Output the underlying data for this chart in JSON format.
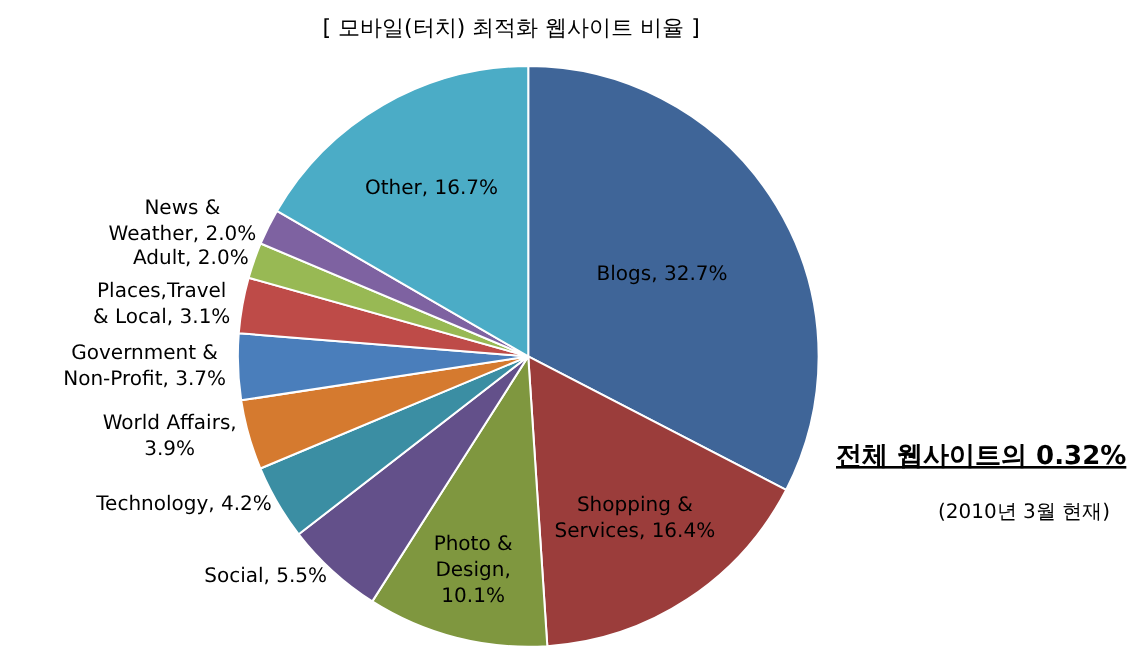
{
  "chart_data": {
    "type": "pie",
    "title": "[ 모바일(터치) 최적화 웹사이트 비율 ]",
    "categories": [
      "Blogs, 32.7%",
      "Shopping &\nServices, 16.4%",
      "Photo &\nDesign,\n10.1%",
      "Social, 5.5%",
      "Technology, 4.2%",
      "World Affairs,\n3.9%",
      "Government &\nNon-Profit, 3.7%",
      "Places,Travel\n& Local, 3.1%",
      "Adult, 2.0%",
      "News &\nWeather, 2.0%",
      "Other, 16.7%"
    ],
    "values": [
      32.7,
      16.4,
      10.1,
      5.5,
      4.2,
      3.9,
      3.7,
      3.1,
      2.0,
      2.0,
      16.7
    ],
    "colors": [
      "#3f6598",
      "#9b3d3b",
      "#7f973f",
      "#63508a",
      "#3b8ea3",
      "#d57a2f",
      "#4a7ebb",
      "#be4b48",
      "#98b954",
      "#7e62a1",
      "#4bacc6"
    ],
    "annotations": [
      "전체 웹사이트의 0.32%",
      "(2010년 3월 현재)"
    ],
    "legend": false
  }
}
